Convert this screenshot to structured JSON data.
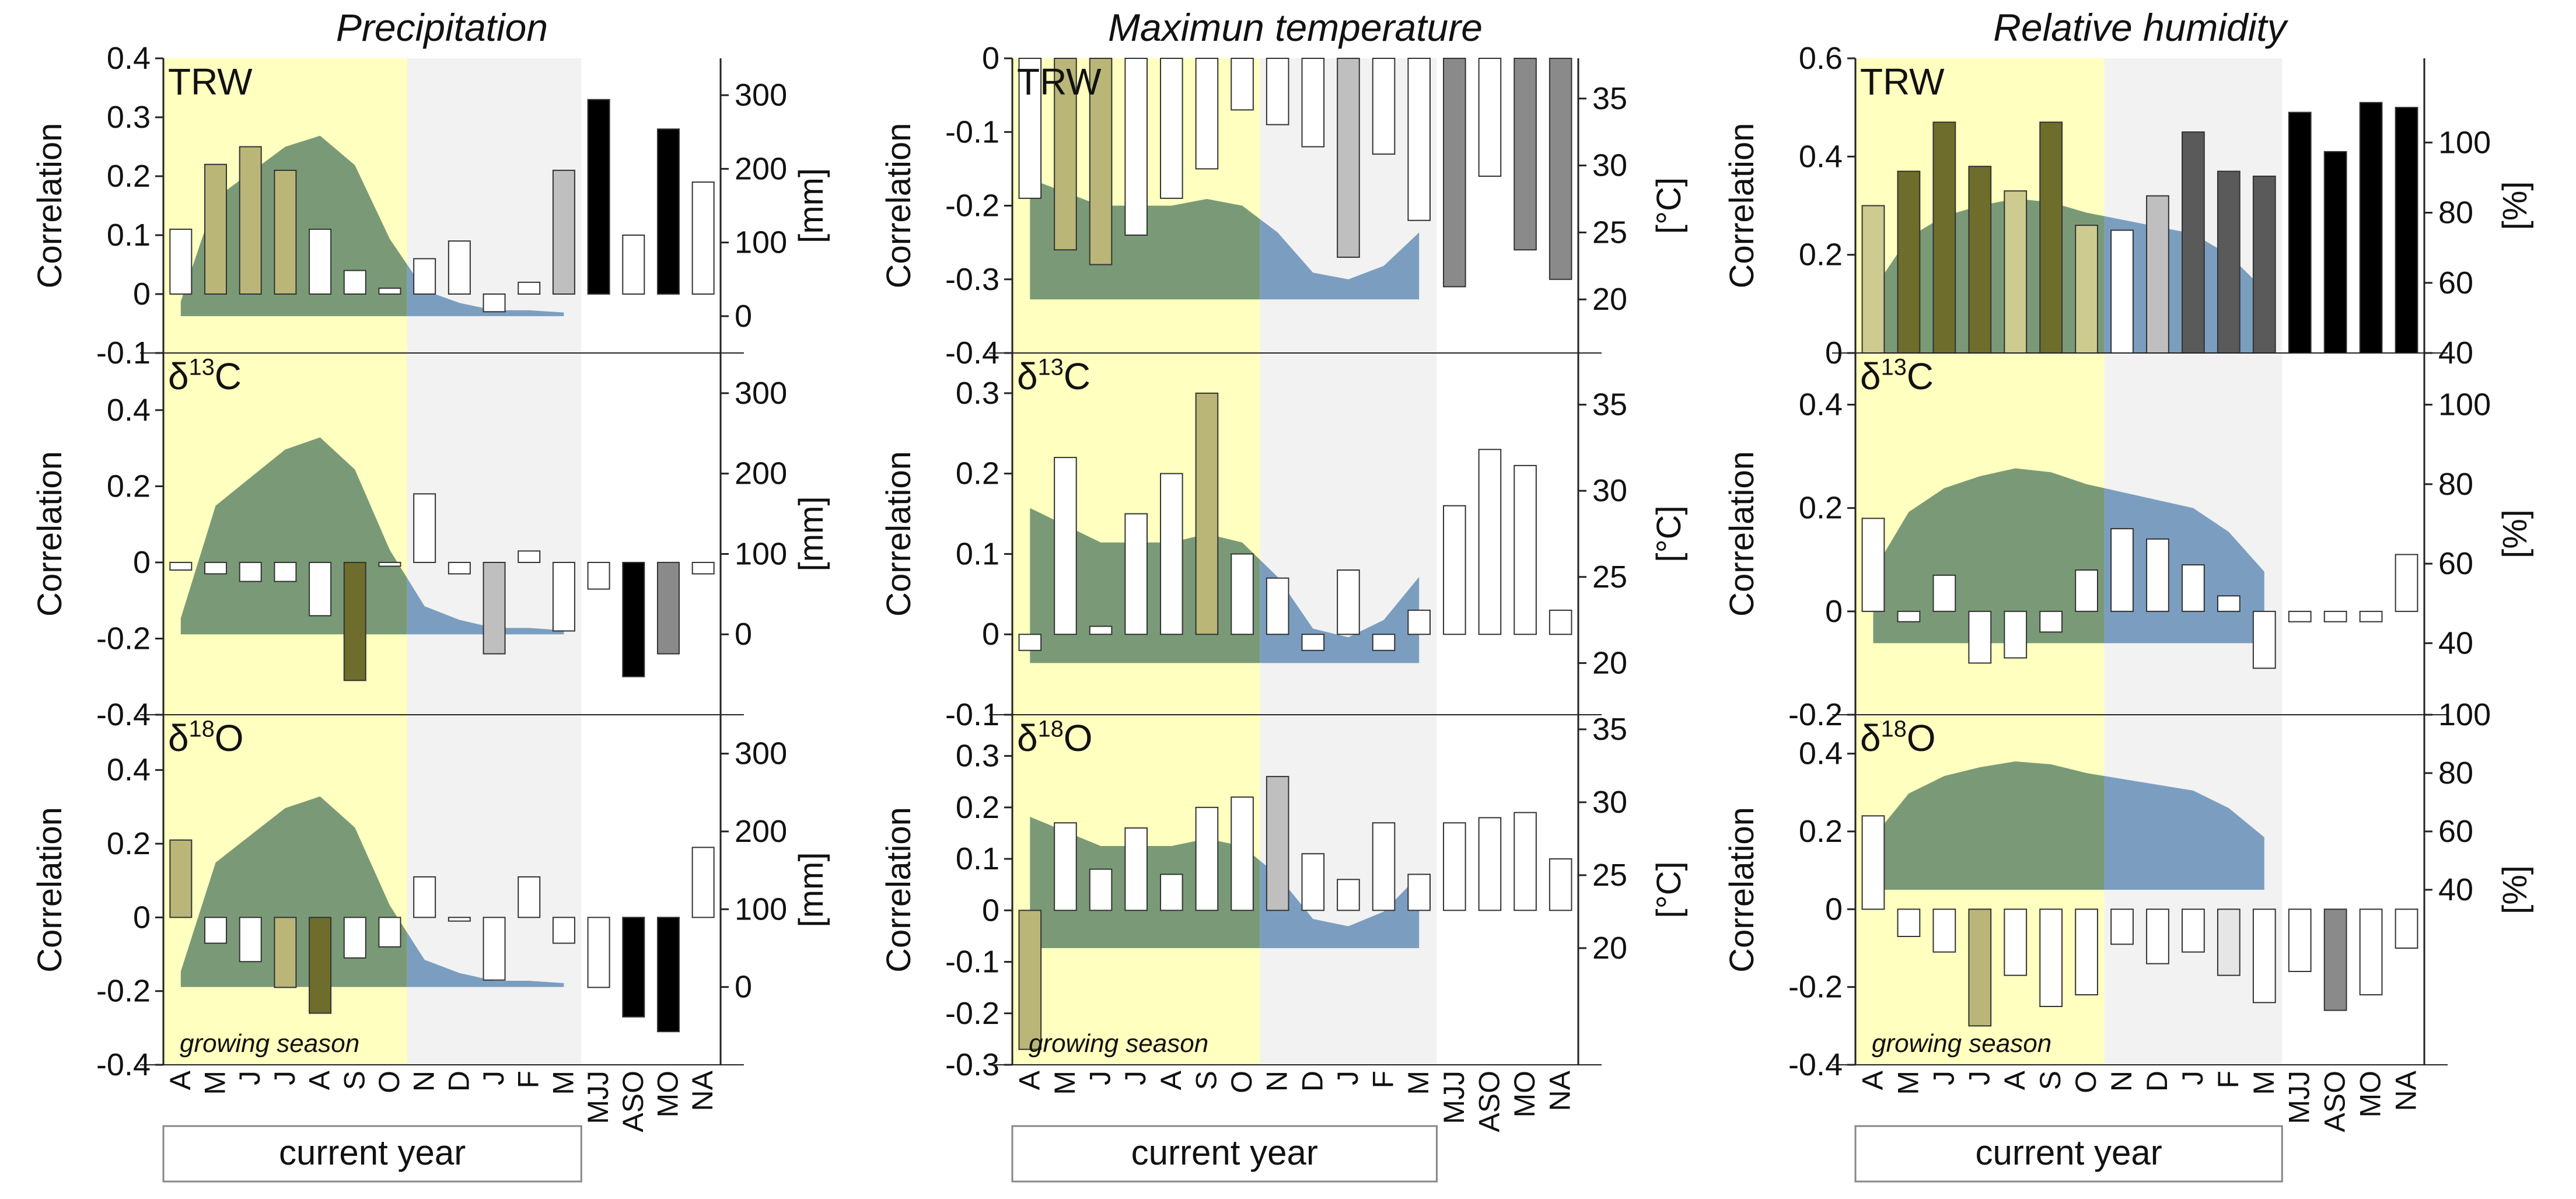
{
  "categories": [
    "A",
    "M",
    "J",
    "J",
    "A",
    "S",
    "O",
    "N",
    "D",
    "J",
    "F",
    "M",
    "MJJ",
    "ASO",
    "MO",
    "NA"
  ],
  "labels": {
    "current_year": "current year",
    "growing_season": "growing season",
    "correlation_axis": "Correlation",
    "precip_unit": "[mm]",
    "temp_unit": "[°C]",
    "rh_unit": "[%]"
  },
  "colors": {
    "growing_season_bg": "#ffffbf",
    "dormant_bg": "#f2f2f2",
    "climate_growing": "#7a9a77",
    "climate_dormant": "#7b9ec0",
    "bar_growing_light": "#cdcb8f",
    "bar_growing_mid": "#b9b678",
    "bar_growing_dark": "#6e6d2c",
    "bar_dormant_light": "#e6e6e6",
    "bar_dormant_mid": "#bfbfbf",
    "bar_dormant_dark": "#5a5a5a",
    "bar_black": "#000000",
    "bar_grey": "#8a8a8a",
    "trw_label": "#6e6d2c"
  },
  "columns": [
    {
      "title": "Precipitation",
      "climate_unit": "[mm]",
      "chart_data": {
        "type": "bar",
        "categories": [
          "A",
          "M",
          "J",
          "J",
          "A",
          "S",
          "O",
          "N",
          "D",
          "J",
          "F",
          "M",
          "MJJ",
          "ASO",
          "MO",
          "NA"
        ],
        "climate_series": {
          "name": "monthly precipitation",
          "unit": "mm",
          "values": [
            20,
            160,
            195,
            230,
            245,
            205,
            105,
            35,
            18,
            8,
            8,
            5
          ]
        },
        "panels": [
          {
            "label": "TRW",
            "ylim": [
              -0.1,
              0.4
            ],
            "yticks": [
              "0.4",
              "0.3",
              "0.2",
              "0.1",
              "0",
              "-0.1"
            ],
            "y2lim": [
              -50,
              350
            ],
            "y2ticks": [
              "300",
              "200",
              "100",
              "0"
            ],
            "values": [
              0.11,
              0.22,
              0.25,
              0.21,
              0.11,
              0.04,
              0.01,
              0.06,
              0.09,
              -0.03,
              0.02,
              0.21,
              0.33,
              0.1,
              0.28,
              0.19
            ],
            "fills": [
              "#ffffff",
              "#b9b678",
              "#b9b678",
              "#b9b678",
              "#ffffff",
              "#ffffff",
              "#ffffff",
              "#ffffff",
              "#ffffff",
              "#ffffff",
              "#ffffff",
              "#bfbfbf",
              "#000000",
              "#ffffff",
              "#000000",
              "#ffffff"
            ]
          },
          {
            "label": "δ13C",
            "ylim": [
              -0.4,
              0.55
            ],
            "yticks": [
              "0.4",
              "0.2",
              "0",
              "-0.2",
              "-0.4"
            ],
            "y2lim": [
              -100,
              350
            ],
            "y2ticks": [
              "300",
              "200",
              "100",
              "0"
            ],
            "values": [
              -0.02,
              -0.03,
              -0.05,
              -0.05,
              -0.14,
              -0.31,
              -0.01,
              0.18,
              -0.03,
              -0.24,
              0.03,
              -0.18,
              -0.07,
              -0.3,
              -0.24,
              -0.03
            ],
            "fills": [
              "#ffffff",
              "#ffffff",
              "#ffffff",
              "#ffffff",
              "#ffffff",
              "#6e6d2c",
              "#ffffff",
              "#ffffff",
              "#ffffff",
              "#bfbfbf",
              "#ffffff",
              "#ffffff",
              "#ffffff",
              "#000000",
              "#8a8a8a",
              "#ffffff"
            ]
          },
          {
            "label": "δ18O",
            "ylim": [
              -0.4,
              0.55
            ],
            "yticks": [
              "0.4",
              "0.2",
              "0",
              "-0.2",
              "-0.4"
            ],
            "y2lim": [
              -100,
              350
            ],
            "y2ticks": [
              "300",
              "200",
              "100",
              "0"
            ],
            "values": [
              0.21,
              -0.07,
              -0.12,
              -0.19,
              -0.26,
              -0.11,
              -0.08,
              0.11,
              -0.01,
              -0.17,
              0.11,
              -0.07,
              -0.19,
              -0.27,
              -0.31,
              0.19
            ],
            "fills": [
              "#b9b678",
              "#ffffff",
              "#ffffff",
              "#b9b678",
              "#6e6d2c",
              "#ffffff",
              "#ffffff",
              "#ffffff",
              "#ffffff",
              "#ffffff",
              "#ffffff",
              "#ffffff",
              "#ffffff",
              "#000000",
              "#000000",
              "#ffffff"
            ]
          }
        ]
      }
    },
    {
      "title": "Maximun temperature",
      "climate_unit": "[°C]",
      "chart_data": {
        "type": "bar",
        "categories": [
          "A",
          "M",
          "J",
          "J",
          "A",
          "S",
          "O",
          "N",
          "D",
          "J",
          "F",
          "M",
          "MJJ",
          "ASO",
          "MO",
          "NA"
        ],
        "climate_series": {
          "name": "monthly maximum temperature",
          "unit": "°C",
          "values": [
            29,
            28,
            27,
            27,
            27,
            27.5,
            27,
            25,
            22,
            21.5,
            22.5,
            25
          ]
        },
        "panels": [
          {
            "label": "TRW",
            "ylim": [
              -0.4,
              0
            ],
            "yticks": [
              "0",
              "-0.1",
              "-0.2",
              "-0.3",
              "-0.4"
            ],
            "y2lim": [
              16,
              38
            ],
            "y2ticks": [
              "35",
              "30",
              "25",
              "20"
            ],
            "values": [
              -0.19,
              -0.26,
              -0.28,
              -0.24,
              -0.19,
              -0.15,
              -0.07,
              -0.09,
              -0.12,
              -0.27,
              -0.13,
              -0.22,
              -0.31,
              -0.16,
              -0.26,
              -0.3
            ],
            "fills": [
              "#ffffff",
              "#b9b678",
              "#b9b678",
              "#ffffff",
              "#ffffff",
              "#ffffff",
              "#ffffff",
              "#ffffff",
              "#ffffff",
              "#bfbfbf",
              "#ffffff",
              "#ffffff",
              "#8a8a8a",
              "#ffffff",
              "#8a8a8a",
              "#8a8a8a"
            ]
          },
          {
            "label": "δ13C",
            "ylim": [
              -0.1,
              0.35
            ],
            "yticks": [
              "0.3",
              "0.2",
              "0.1",
              "0",
              "-0.1"
            ],
            "y2lim": [
              17,
              38
            ],
            "y2ticks": [
              "35",
              "30",
              "25",
              "20"
            ],
            "values": [
              -0.02,
              0.22,
              0.01,
              0.15,
              0.2,
              0.3,
              0.1,
              0.07,
              -0.02,
              0.08,
              -0.02,
              0.03,
              0.16,
              0.23,
              0.21,
              0.03
            ],
            "fills": [
              "#ffffff",
              "#ffffff",
              "#ffffff",
              "#ffffff",
              "#ffffff",
              "#b9b678",
              "#ffffff",
              "#ffffff",
              "#ffffff",
              "#ffffff",
              "#ffffff",
              "#ffffff",
              "#ffffff",
              "#ffffff",
              "#ffffff",
              "#ffffff"
            ]
          },
          {
            "label": "δ18O",
            "ylim": [
              -0.3,
              0.38
            ],
            "yticks": [
              "0.3",
              "0.2",
              "0.1",
              "0",
              "-0.1",
              "-0.2",
              "-0.3"
            ],
            "y2lim": [
              12,
              36
            ],
            "y2ticks": [
              "35",
              "30",
              "25",
              "20"
            ],
            "values": [
              -0.27,
              0.17,
              0.08,
              0.16,
              0.07,
              0.2,
              0.22,
              0.26,
              0.11,
              0.06,
              0.17,
              0.07,
              0.17,
              0.18,
              0.19,
              0.1
            ],
            "fills": [
              "#b9b678",
              "#ffffff",
              "#ffffff",
              "#ffffff",
              "#ffffff",
              "#ffffff",
              "#ffffff",
              "#bfbfbf",
              "#ffffff",
              "#ffffff",
              "#ffffff",
              "#ffffff",
              "#ffffff",
              "#ffffff",
              "#ffffff",
              "#ffffff"
            ]
          }
        ]
      }
    },
    {
      "title": "Relative humidity",
      "climate_unit": "[%]",
      "chart_data": {
        "type": "bar",
        "categories": [
          "A",
          "M",
          "J",
          "J",
          "A",
          "S",
          "O",
          "N",
          "D",
          "J",
          "F",
          "M",
          "MJJ",
          "ASO",
          "MO",
          "NA"
        ],
        "climate_series": {
          "name": "monthly relative humidity",
          "unit": "%",
          "values": [
            58,
            73,
            79,
            82,
            84,
            83,
            80,
            78,
            76,
            74,
            68,
            58
          ]
        },
        "panels": [
          {
            "label": "TRW",
            "ylim": [
              0,
              0.6
            ],
            "yticks": [
              "0.6",
              "0.4",
              "0.2",
              "0"
            ],
            "y2lim": [
              40,
              124
            ],
            "y2ticks": [
              "100",
              "80",
              "60",
              "40"
            ],
            "values": [
              0.3,
              0.37,
              0.47,
              0.38,
              0.33,
              0.47,
              0.26,
              0.25,
              0.32,
              0.45,
              0.37,
              0.36,
              0.49,
              0.41,
              0.51,
              0.5
            ],
            "fills": [
              "#cdcb8f",
              "#6e6d2c",
              "#6e6d2c",
              "#6e6d2c",
              "#cdcb8f",
              "#6e6d2c",
              "#cdcb8f",
              "#ffffff",
              "#bfbfbf",
              "#5a5a5a",
              "#5a5a5a",
              "#5a5a5a",
              "#000000",
              "#000000",
              "#000000",
              "#000000"
            ]
          },
          {
            "label": "δ13C",
            "ylim": [
              -0.2,
              0.5
            ],
            "yticks": [
              "0.4",
              "0.2",
              "0",
              "-0.2"
            ],
            "y2lim": [
              22,
              113
            ],
            "y2ticks": [
              "100",
              "80",
              "60",
              "40"
            ],
            "values": [
              0.18,
              -0.02,
              0.07,
              -0.1,
              -0.09,
              -0.04,
              0.08,
              0.16,
              0.14,
              0.09,
              0.03,
              -0.11,
              -0.02,
              -0.02,
              -0.02,
              0.11
            ],
            "fills": [
              "#ffffff",
              "#ffffff",
              "#ffffff",
              "#ffffff",
              "#ffffff",
              "#ffffff",
              "#ffffff",
              "#ffffff",
              "#ffffff",
              "#ffffff",
              "#ffffff",
              "#ffffff",
              "#ffffff",
              "#ffffff",
              "#ffffff",
              "#ffffff"
            ]
          },
          {
            "label": "δ18O",
            "ylim": [
              -0.4,
              0.5
            ],
            "yticks": [
              "0.4",
              "0.2",
              "0",
              "-0.2",
              "-0.4"
            ],
            "y2lim": [
              -20,
              100
            ],
            "y2ticks": [
              "100",
              "80",
              "60",
              "40"
            ],
            "values": [
              0.24,
              -0.07,
              -0.11,
              -0.3,
              -0.17,
              -0.25,
              -0.22,
              -0.09,
              -0.14,
              -0.11,
              -0.17,
              -0.24,
              -0.16,
              -0.26,
              -0.22,
              -0.1
            ],
            "fills": [
              "#ffffff",
              "#ffffff",
              "#ffffff",
              "#b9b678",
              "#ffffff",
              "#ffffff",
              "#ffffff",
              "#ffffff",
              "#ffffff",
              "#ffffff",
              "#e6e6e6",
              "#ffffff",
              "#ffffff",
              "#8a8a8a",
              "#ffffff",
              "#ffffff"
            ]
          }
        ]
      }
    }
  ]
}
